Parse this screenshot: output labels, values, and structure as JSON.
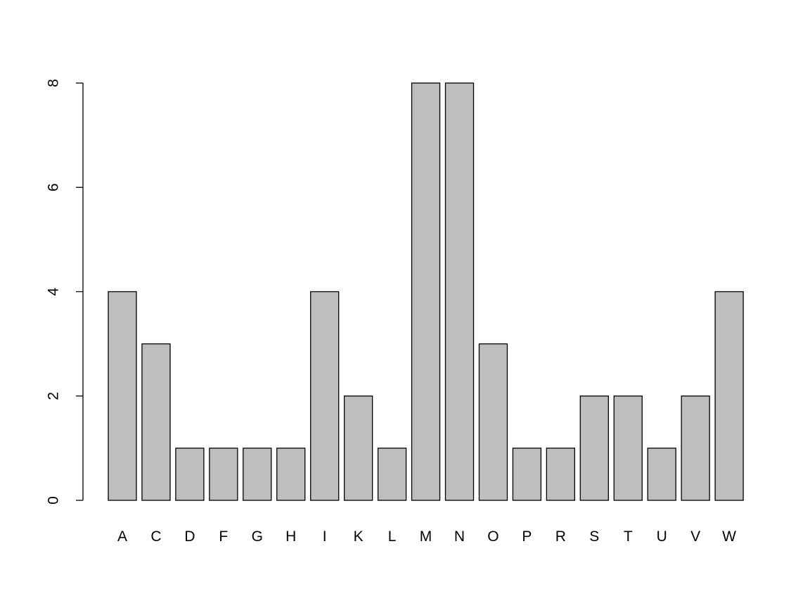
{
  "chart_data": {
    "type": "bar",
    "title": "",
    "xlabel": "",
    "ylabel": "",
    "categories": [
      "A",
      "C",
      "D",
      "F",
      "G",
      "H",
      "I",
      "K",
      "L",
      "M",
      "N",
      "O",
      "P",
      "R",
      "S",
      "T",
      "U",
      "V",
      "W"
    ],
    "values": [
      4,
      3,
      1,
      1,
      1,
      1,
      4,
      2,
      1,
      8,
      8,
      3,
      1,
      1,
      2,
      2,
      1,
      2,
      4
    ],
    "ylim": [
      0,
      8
    ],
    "yticks": [
      0,
      2,
      4,
      6,
      8
    ],
    "ytick_labels": [
      "0",
      "2",
      "4",
      "6",
      "8"
    ],
    "grid": false,
    "legend": "none",
    "colors": {
      "bar_fill": "#bebebe",
      "bar_stroke": "#000000",
      "axis": "#000000",
      "background": "#ffffff"
    }
  }
}
